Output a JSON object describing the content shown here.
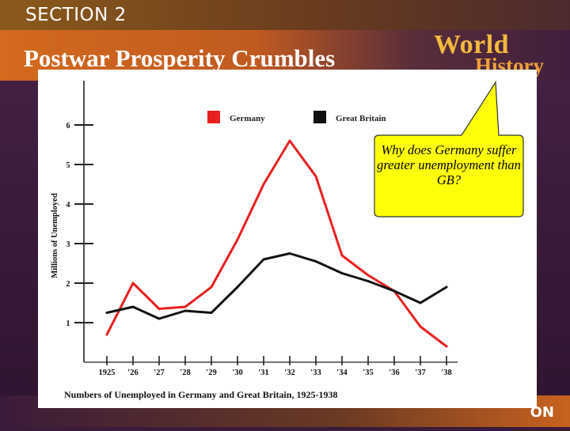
{
  "header": {
    "section": "SECTION 2",
    "title": "Postwar Prosperity Crumbles",
    "brand_line1": "World",
    "brand_line2": "History",
    "footer_text": "ON"
  },
  "callout": {
    "text": "Why does Germany suffer greater unemployment than GB?"
  },
  "chart_data": {
    "type": "line",
    "title": "Numbers of Unemployed in Germany and Great Britain, 1925-1938",
    "xlabel": "",
    "ylabel": "Millions of Unemployed",
    "x": [
      "1925",
      "'26",
      "'27",
      "'28",
      "'29",
      "'30",
      "'31",
      "'32",
      "'33",
      "'34",
      "'35",
      "'36",
      "'37",
      "'38"
    ],
    "yticks": [
      "1",
      "2",
      "3",
      "4",
      "5",
      "6"
    ],
    "ylim": [
      0,
      6.8
    ],
    "grid": false,
    "legend_position": "top",
    "series": [
      {
        "name": "Germany",
        "color": "#e82020",
        "values": [
          0.7,
          2.0,
          1.35,
          1.4,
          1.9,
          3.1,
          4.5,
          5.6,
          4.7,
          2.7,
          2.2,
          1.8,
          0.9,
          0.4
        ]
      },
      {
        "name": "Great Britain",
        "color": "#111111",
        "values": [
          1.25,
          1.4,
          1.1,
          1.3,
          1.25,
          1.9,
          2.6,
          2.75,
          2.55,
          2.25,
          2.05,
          1.8,
          1.5,
          1.9
        ]
      }
    ]
  }
}
